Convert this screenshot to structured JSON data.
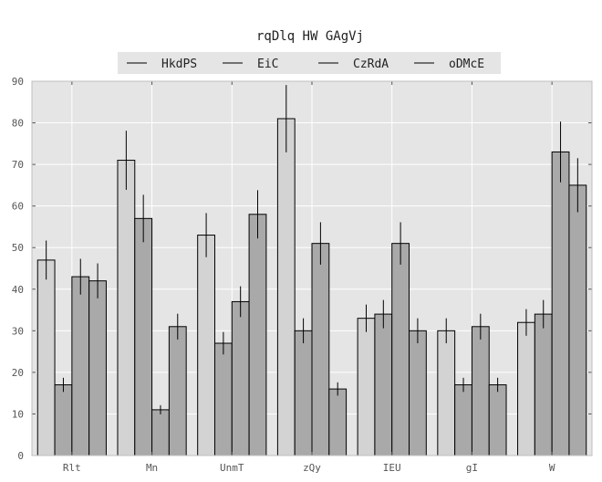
{
  "chart_data": {
    "type": "bar",
    "title": "rqDlq HW GAgVj",
    "xlabel": "",
    "ylabel": "",
    "categories": [
      "Rlt",
      "Mn",
      "UnmT",
      "zQy",
      "IEU",
      "gI",
      "W"
    ],
    "ylim": [
      0,
      90
    ],
    "yticks": [
      0,
      10,
      20,
      30,
      40,
      50,
      60,
      70,
      80,
      90
    ],
    "grid": true,
    "legend_position": "top-center",
    "series": [
      {
        "name": "HkdPS",
        "color": "#d3d3d3",
        "values": [
          47,
          71,
          53,
          81,
          33,
          30,
          32
        ],
        "errors": [
          4.7,
          7.1,
          5.3,
          8.1,
          3.3,
          3.0,
          3.2
        ]
      },
      {
        "name": "EiC",
        "color": "#a9a9a9",
        "values": [
          17,
          57,
          27,
          30,
          34,
          17,
          34
        ],
        "errors": [
          1.7,
          5.7,
          2.7,
          3.0,
          3.4,
          1.7,
          3.4
        ]
      },
      {
        "name": "CzRdA",
        "color": "#a9a9a9",
        "values": [
          43,
          11,
          37,
          51,
          51,
          31,
          73
        ],
        "errors": [
          4.3,
          1.1,
          3.7,
          5.1,
          5.1,
          3.1,
          7.3
        ]
      },
      {
        "name": "oDMcE",
        "color": "#a9a9a9",
        "values": [
          42,
          31,
          58,
          16,
          30,
          17,
          65
        ],
        "errors": [
          4.2,
          3.1,
          5.8,
          1.6,
          3.0,
          1.7,
          6.5
        ]
      }
    ]
  }
}
